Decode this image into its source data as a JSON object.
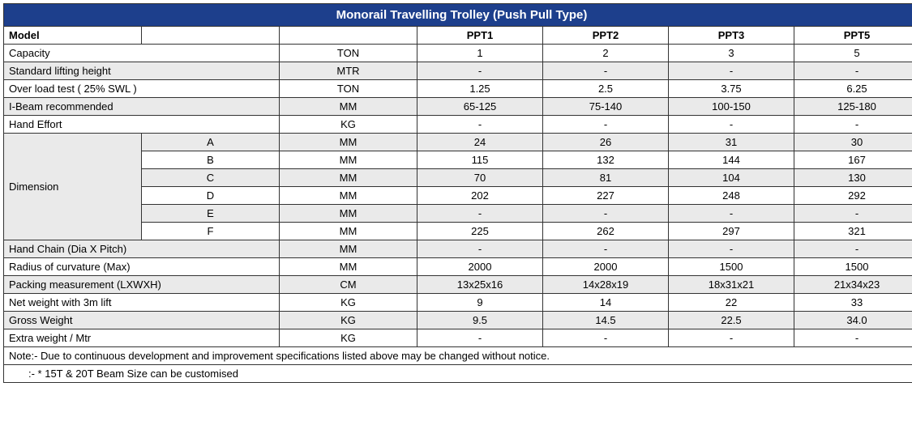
{
  "title": "Monorail Travelling Trolley (Push Pull Type)",
  "header": {
    "model": "Model",
    "blank": "",
    "c1": "PPT1",
    "c2": "PPT2",
    "c3": "PPT3",
    "c4": "PPT5"
  },
  "rows": {
    "capacity": {
      "label": "Capacity",
      "unit": "TON",
      "v": [
        "1",
        "2",
        "3",
        "5"
      ]
    },
    "slh": {
      "label": "Standard lifting height",
      "unit": "MTR",
      "v": [
        "-",
        "-",
        "-",
        "-"
      ]
    },
    "overload": {
      "label": "Over load test ( 25% SWL )",
      "unit": "TON",
      "v": [
        "1.25",
        "2.5",
        "3.75",
        "6.25"
      ]
    },
    "ibeam": {
      "label": "I-Beam recommended",
      "unit": "MM",
      "v": [
        "65-125",
        "75-140",
        "100-150",
        "125-180"
      ]
    },
    "hand_effort": {
      "label": "Hand Effort",
      "unit": "KG",
      "v": [
        "-",
        "-",
        "-",
        "-"
      ]
    },
    "dim_label": "Dimension",
    "dim_a": {
      "sub": "A",
      "unit": "MM",
      "v": [
        "24",
        "26",
        "31",
        "30"
      ]
    },
    "dim_b": {
      "sub": "B",
      "unit": "MM",
      "v": [
        "115",
        "132",
        "144",
        "167"
      ]
    },
    "dim_c": {
      "sub": "C",
      "unit": "MM",
      "v": [
        "70",
        "81",
        "104",
        "130"
      ]
    },
    "dim_d": {
      "sub": "D",
      "unit": "MM",
      "v": [
        "202",
        "227",
        "248",
        "292"
      ]
    },
    "dim_e": {
      "sub": "E",
      "unit": "MM",
      "v": [
        "-",
        "-",
        "-",
        "-"
      ]
    },
    "dim_f": {
      "sub": "F",
      "unit": "MM",
      "v": [
        "225",
        "262",
        "297",
        "321"
      ]
    },
    "hand_chain": {
      "label": "Hand Chain (Dia X Pitch)",
      "unit": "MM",
      "v": [
        "-",
        "-",
        "-",
        "-"
      ]
    },
    "radius": {
      "label": "Radius of curvature (Max)",
      "unit": "MM",
      "v": [
        "2000",
        "2000",
        "1500",
        "1500"
      ]
    },
    "packing": {
      "label": "Packing measurement (LXWXH)",
      "unit": "CM",
      "v": [
        "13x25x16",
        "14x28x19",
        "18x31x21",
        "21x34x23"
      ]
    },
    "net_weight": {
      "label": "Net weight with 3m lift",
      "unit": "KG",
      "v": [
        "9",
        "14",
        "22",
        "33"
      ]
    },
    "gross_weight": {
      "label": "Gross Weight",
      "unit": "KG",
      "v": [
        "9.5",
        "14.5",
        "22.5",
        "34.0"
      ]
    },
    "extra_weight": {
      "label": "Extra weight / Mtr",
      "unit": "KG",
      "v": [
        "-",
        "-",
        "-",
        "-"
      ]
    }
  },
  "notes": {
    "n1": "Note:- Due to continuous development and improvement specifications listed above may be changed without notice.",
    "n2": ":- * 15T & 20T Beam Size can be customised"
  },
  "colors": {
    "title_bg": "#1d3f8c",
    "title_fg": "#ffffff",
    "stripe_bg": "#eaeaea",
    "border": "#333333",
    "text": "#000000",
    "bg": "#ffffff"
  }
}
